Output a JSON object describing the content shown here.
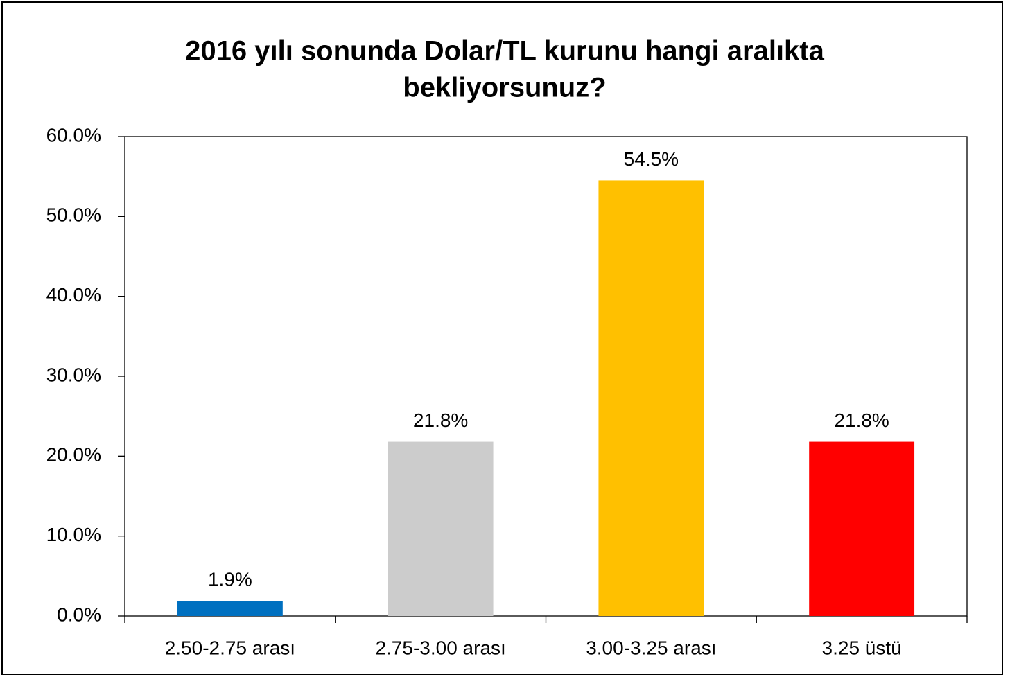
{
  "chart_data": {
    "type": "bar",
    "title": [
      "2016 yılı sonunda Dolar/TL kurunu hangi aralıkta",
      "bekliyorsunuz?"
    ],
    "categories": [
      "2.50-2.75 arası",
      "2.75-3.00 arası",
      "3.00-3.25 arası",
      "3.25 üstü"
    ],
    "values": [
      1.9,
      21.8,
      54.5,
      21.8
    ],
    "value_labels": [
      "1.9%",
      "21.8%",
      "54.5%",
      "21.8%"
    ],
    "colors": [
      "#0070c0",
      "#cccccc",
      "#ffc000",
      "#ff0000"
    ],
    "ylim": [
      0,
      60
    ],
    "yticks": [
      {
        "value": 0,
        "label": "0.0%"
      },
      {
        "value": 10,
        "label": "10.0%"
      },
      {
        "value": 20,
        "label": "20.0%"
      },
      {
        "value": 30,
        "label": "30.0%"
      },
      {
        "value": 40,
        "label": "40.0%"
      },
      {
        "value": 50,
        "label": "50.0%"
      },
      {
        "value": 60,
        "label": "60.0%"
      }
    ],
    "grid": false
  }
}
